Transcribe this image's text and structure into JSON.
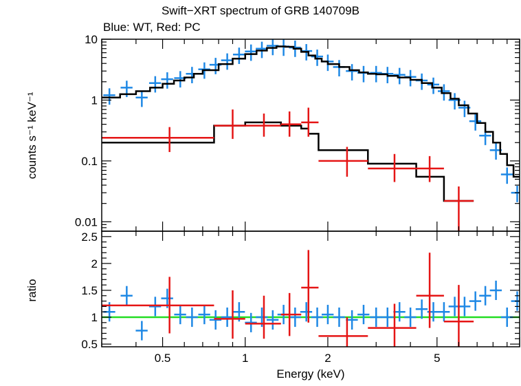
{
  "chart_data": [
    {
      "panel": "spectrum",
      "type": "scatter",
      "title": "Swift−XRT spectrum of GRB 140709B",
      "subtitle": "Blue: WT, Red: PC",
      "ylabel": "counts s⁻¹ keV⁻¹",
      "xlabel": "",
      "xscale": "log",
      "yscale": "log",
      "xlim": [
        0.3,
        10
      ],
      "ylim": [
        0.007,
        10
      ],
      "yticks": [
        0.01,
        0.1,
        1,
        10
      ],
      "ytick_labels": [
        "0.01",
        "0.1",
        "1",
        "10"
      ],
      "series": [
        {
          "name": "WT",
          "color": "#1e88e5",
          "points": [
            {
              "x": 0.32,
              "y": 1.2
            },
            {
              "x": 0.37,
              "y": 1.6
            },
            {
              "x": 0.42,
              "y": 1.1
            },
            {
              "x": 0.47,
              "y": 1.9
            },
            {
              "x": 0.52,
              "y": 2.2
            },
            {
              "x": 0.58,
              "y": 2.3
            },
            {
              "x": 0.64,
              "y": 2.7
            },
            {
              "x": 0.71,
              "y": 3.2
            },
            {
              "x": 0.78,
              "y": 3.8
            },
            {
              "x": 0.86,
              "y": 4.5
            },
            {
              "x": 0.95,
              "y": 5.6
            },
            {
              "x": 1.05,
              "y": 6.3
            },
            {
              "x": 1.15,
              "y": 7.0
            },
            {
              "x": 1.26,
              "y": 7.8
            },
            {
              "x": 1.38,
              "y": 7.6
            },
            {
              "x": 1.52,
              "y": 7.3
            },
            {
              "x": 1.67,
              "y": 6.4
            },
            {
              "x": 1.83,
              "y": 5.2
            },
            {
              "x": 2.0,
              "y": 4.3
            },
            {
              "x": 2.2,
              "y": 3.5
            },
            {
              "x": 2.45,
              "y": 3.0
            },
            {
              "x": 2.7,
              "y": 2.8
            },
            {
              "x": 3.0,
              "y": 2.8
            },
            {
              "x": 3.3,
              "y": 2.7
            },
            {
              "x": 3.65,
              "y": 2.6
            },
            {
              "x": 4.0,
              "y": 2.4
            },
            {
              "x": 4.4,
              "y": 2.1
            },
            {
              "x": 4.85,
              "y": 1.8
            },
            {
              "x": 5.3,
              "y": 1.4
            },
            {
              "x": 5.8,
              "y": 1.0
            },
            {
              "x": 6.3,
              "y": 0.75
            },
            {
              "x": 6.9,
              "y": 0.45
            },
            {
              "x": 7.5,
              "y": 0.26
            },
            {
              "x": 8.2,
              "y": 0.15
            },
            {
              "x": 9.0,
              "y": 0.06
            },
            {
              "x": 9.8,
              "y": 0.03
            }
          ]
        },
        {
          "name": "PC",
          "color": "#e51515",
          "points": [
            {
              "x": 0.53,
              "xlo": 0.3,
              "xhi": 0.77,
              "y": 0.24,
              "ylo": 0.14,
              "yhi": 0.36
            },
            {
              "x": 0.9,
              "xlo": 0.77,
              "xhi": 1.0,
              "y": 0.38,
              "ylo": 0.23,
              "yhi": 0.7
            },
            {
              "x": 1.17,
              "xlo": 1.0,
              "xhi": 1.35,
              "y": 0.38,
              "ylo": 0.25,
              "yhi": 0.6
            },
            {
              "x": 1.45,
              "xlo": 1.35,
              "xhi": 1.6,
              "y": 0.4,
              "ylo": 0.25,
              "yhi": 0.65
            },
            {
              "x": 1.7,
              "xlo": 1.6,
              "xhi": 1.85,
              "y": 0.43,
              "ylo": 0.25,
              "yhi": 0.75
            },
            {
              "x": 2.35,
              "xlo": 1.85,
              "xhi": 2.8,
              "y": 0.1,
              "ylo": 0.055,
              "yhi": 0.17
            },
            {
              "x": 3.5,
              "xlo": 2.8,
              "xhi": 4.2,
              "y": 0.075,
              "ylo": 0.045,
              "yhi": 0.13
            },
            {
              "x": 4.7,
              "xlo": 4.2,
              "xhi": 5.3,
              "y": 0.075,
              "ylo": 0.045,
              "yhi": 0.12
            },
            {
              "x": 6.0,
              "xlo": 5.3,
              "xhi": 6.8,
              "y": 0.022,
              "ylo": 0.007,
              "yhi": 0.038
            }
          ]
        }
      ],
      "models": [
        {
          "name": "WT model",
          "color": "#000000",
          "x": [
            0.3,
            0.35,
            0.4,
            0.45,
            0.5,
            0.55,
            0.6,
            0.65,
            0.7,
            0.8,
            0.9,
            1.0,
            1.1,
            1.2,
            1.3,
            1.4,
            1.5,
            1.6,
            1.7,
            1.8,
            1.9,
            2.0,
            2.2,
            2.4,
            2.6,
            2.8,
            3.0,
            3.3,
            3.6,
            4.0,
            4.4,
            4.8,
            5.2,
            5.6,
            6.0,
            6.5,
            7.0,
            7.5,
            8.0,
            8.5,
            9.0,
            9.5,
            10.0
          ],
          "y": [
            1.1,
            1.25,
            1.4,
            1.6,
            1.85,
            2.1,
            2.35,
            2.7,
            3.1,
            3.9,
            4.8,
            5.7,
            6.5,
            7.2,
            7.6,
            7.5,
            7.0,
            6.2,
            5.4,
            4.8,
            4.3,
            3.9,
            3.5,
            3.1,
            2.85,
            2.7,
            2.65,
            2.5,
            2.35,
            2.15,
            1.9,
            1.6,
            1.3,
            1.05,
            0.82,
            0.6,
            0.42,
            0.3,
            0.2,
            0.13,
            0.085,
            0.055,
            0.035
          ]
        },
        {
          "name": "PC model",
          "color": "#000000",
          "x": [
            0.3,
            0.77,
            1.0,
            1.35,
            1.6,
            1.7,
            1.85,
            2.8,
            4.2,
            5.3,
            6.8
          ],
          "y": [
            0.2,
            0.38,
            0.43,
            0.38,
            0.34,
            0.28,
            0.15,
            0.09,
            0.055,
            0.022,
            0.022
          ]
        }
      ]
    },
    {
      "panel": "ratio",
      "type": "scatter",
      "xlabel": "Energy (keV)",
      "ylabel": "ratio",
      "xscale": "log",
      "xlim": [
        0.3,
        10
      ],
      "ylim": [
        0.45,
        2.6
      ],
      "yticks": [
        0.5,
        1,
        1.5,
        2,
        2.5
      ],
      "ytick_labels": [
        "0.5",
        "1",
        "1.5",
        "2",
        "2.5"
      ],
      "xticks": [
        0.5,
        1,
        2,
        5
      ],
      "xtick_labels": [
        "0.5",
        "1",
        "2",
        "5"
      ],
      "reference_line": {
        "y": 1,
        "color": "#22dd22"
      },
      "series": [
        {
          "name": "WT",
          "color": "#1e88e5",
          "points": [
            {
              "x": 0.32,
              "y": 1.1
            },
            {
              "x": 0.37,
              "y": 1.4
            },
            {
              "x": 0.42,
              "y": 0.75
            },
            {
              "x": 0.47,
              "y": 1.2
            },
            {
              "x": 0.52,
              "y": 1.35
            },
            {
              "x": 0.58,
              "y": 1.05
            },
            {
              "x": 0.64,
              "y": 1.0
            },
            {
              "x": 0.71,
              "y": 1.05
            },
            {
              "x": 0.78,
              "y": 0.95
            },
            {
              "x": 0.86,
              "y": 1.0
            },
            {
              "x": 0.95,
              "y": 1.1
            },
            {
              "x": 1.05,
              "y": 0.9
            },
            {
              "x": 1.15,
              "y": 1.0
            },
            {
              "x": 1.26,
              "y": 0.95
            },
            {
              "x": 1.38,
              "y": 1.05
            },
            {
              "x": 1.52,
              "y": 1.0
            },
            {
              "x": 1.67,
              "y": 1.1
            },
            {
              "x": 1.83,
              "y": 1.0
            },
            {
              "x": 2.0,
              "y": 1.05
            },
            {
              "x": 2.2,
              "y": 1.0
            },
            {
              "x": 2.45,
              "y": 0.95
            },
            {
              "x": 2.7,
              "y": 1.05
            },
            {
              "x": 3.0,
              "y": 1.0
            },
            {
              "x": 3.3,
              "y": 1.0
            },
            {
              "x": 3.65,
              "y": 1.1
            },
            {
              "x": 4.0,
              "y": 1.0
            },
            {
              "x": 4.4,
              "y": 1.15
            },
            {
              "x": 4.85,
              "y": 1.1
            },
            {
              "x": 5.3,
              "y": 1.1
            },
            {
              "x": 5.8,
              "y": 1.2
            },
            {
              "x": 6.3,
              "y": 1.2
            },
            {
              "x": 6.9,
              "y": 1.3
            },
            {
              "x": 7.5,
              "y": 1.4
            },
            {
              "x": 8.2,
              "y": 1.5
            },
            {
              "x": 9.0,
              "y": 1.0
            },
            {
              "x": 9.8,
              "y": 1.3
            }
          ]
        },
        {
          "name": "PC",
          "color": "#e51515",
          "points": [
            {
              "x": 0.53,
              "xlo": 0.3,
              "xhi": 0.77,
              "y": 1.22,
              "ylo": 0.7,
              "yhi": 1.75
            },
            {
              "x": 0.9,
              "xlo": 0.77,
              "xhi": 1.0,
              "y": 0.97,
              "ylo": 0.6,
              "yhi": 1.5
            },
            {
              "x": 1.17,
              "xlo": 1.0,
              "xhi": 1.35,
              "y": 0.88,
              "ylo": 0.6,
              "yhi": 1.4
            },
            {
              "x": 1.45,
              "xlo": 1.35,
              "xhi": 1.6,
              "y": 1.05,
              "ylo": 0.65,
              "yhi": 1.45
            },
            {
              "x": 1.7,
              "xlo": 1.6,
              "xhi": 1.85,
              "y": 1.55,
              "ylo": 0.9,
              "yhi": 2.25
            },
            {
              "x": 2.35,
              "xlo": 1.85,
              "xhi": 2.8,
              "y": 0.65,
              "ylo": 0.45,
              "yhi": 1.0
            },
            {
              "x": 3.5,
              "xlo": 2.8,
              "xhi": 4.2,
              "y": 0.8,
              "ylo": 0.45,
              "yhi": 1.25
            },
            {
              "x": 4.7,
              "xlo": 4.2,
              "xhi": 5.3,
              "y": 1.4,
              "ylo": 0.8,
              "yhi": 2.2
            },
            {
              "x": 6.0,
              "xlo": 5.3,
              "xhi": 6.8,
              "y": 0.92,
              "ylo": 0.45,
              "yhi": 1.6
            }
          ]
        }
      ]
    }
  ]
}
